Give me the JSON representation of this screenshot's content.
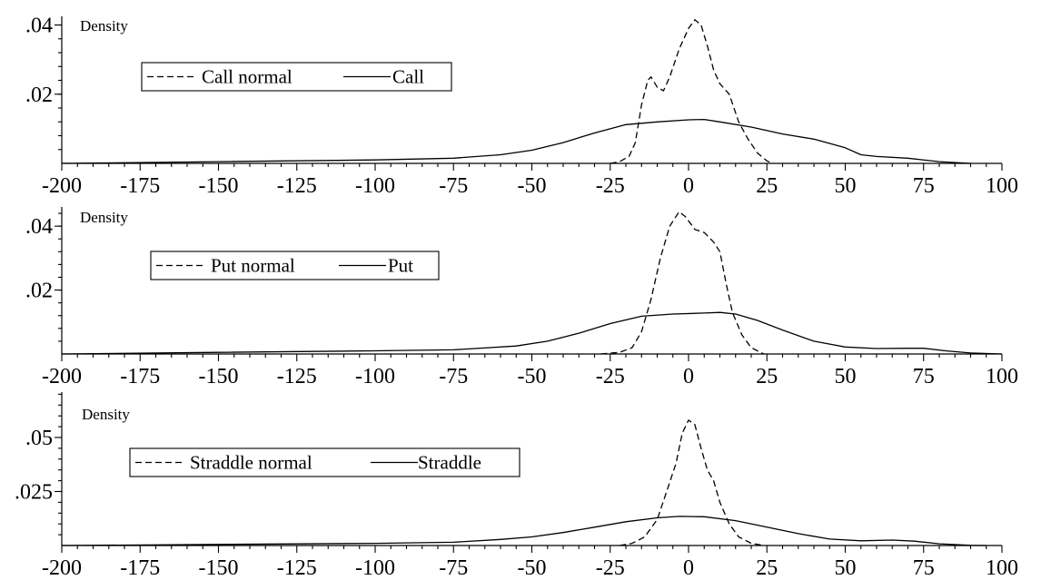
{
  "chart_data": [
    {
      "type": "line",
      "ylabel": "Density",
      "xlim": [
        -200,
        100
      ],
      "x_ticks": [
        "-200",
        "-175",
        "-150",
        "-125",
        "-100",
        "-75",
        "-50",
        "-25",
        "0",
        "25",
        "50",
        "75",
        "100"
      ],
      "y_ticks": [
        {
          "value": 0.02,
          "label": ".02"
        },
        {
          "value": 0.04,
          "label": ".04"
        }
      ],
      "ylim": [
        0,
        0.0425
      ],
      "grid": false,
      "legend_position": "top-left",
      "series": [
        {
          "name": "Call normal",
          "style": "dashed",
          "points": [
            [
              -25,
              0
            ],
            [
              -22,
              0.0005
            ],
            [
              -19,
              0.002
            ],
            [
              -17,
              0.006
            ],
            [
              -15,
              0.017
            ],
            [
              -13,
              0.024
            ],
            [
              -12,
              0.025
            ],
            [
              -10,
              0.022
            ],
            [
              -8,
              0.021
            ],
            [
              -6,
              0.025
            ],
            [
              -3,
              0.033
            ],
            [
              0,
              0.039
            ],
            [
              2,
              0.0415
            ],
            [
              4,
              0.04
            ],
            [
              6,
              0.034
            ],
            [
              8,
              0.027
            ],
            [
              10,
              0.023
            ],
            [
              13,
              0.02
            ],
            [
              16,
              0.012
            ],
            [
              19,
              0.007
            ],
            [
              22,
              0.003
            ],
            [
              25,
              0.0007
            ],
            [
              27,
              0
            ]
          ]
        },
        {
          "name": "Call",
          "style": "solid",
          "points": [
            [
              -200,
              0
            ],
            [
              -150,
              0.0005
            ],
            [
              -100,
              0.001
            ],
            [
              -75,
              0.0015
            ],
            [
              -60,
              0.0025
            ],
            [
              -50,
              0.0038
            ],
            [
              -40,
              0.006
            ],
            [
              -30,
              0.0088
            ],
            [
              -20,
              0.0112
            ],
            [
              -10,
              0.012
            ],
            [
              0,
              0.0126
            ],
            [
              5,
              0.0127
            ],
            [
              10,
              0.012
            ],
            [
              20,
              0.0105
            ],
            [
              30,
              0.0085
            ],
            [
              40,
              0.007
            ],
            [
              50,
              0.0045
            ],
            [
              55,
              0.0025
            ],
            [
              60,
              0.002
            ],
            [
              70,
              0.0015
            ],
            [
              80,
              0.0005
            ],
            [
              90,
              0
            ]
          ]
        }
      ]
    },
    {
      "type": "line",
      "ylabel": "Density",
      "xlim": [
        -200,
        100
      ],
      "x_ticks": [
        "-200",
        "-175",
        "-150",
        "-125",
        "-100",
        "-75",
        "-50",
        "-25",
        "0",
        "25",
        "50",
        "75",
        "100"
      ],
      "y_ticks": [
        {
          "value": 0.02,
          "label": ".02"
        },
        {
          "value": 0.04,
          "label": ".04"
        }
      ],
      "ylim": [
        0,
        0.046
      ],
      "grid": false,
      "legend_position": "top-left",
      "series": [
        {
          "name": "Put normal",
          "style": "dashed",
          "points": [
            [
              -28,
              0
            ],
            [
              -22,
              0.0005
            ],
            [
              -18,
              0.002
            ],
            [
              -15,
              0.007
            ],
            [
              -12,
              0.017
            ],
            [
              -9,
              0.03
            ],
            [
              -6,
              0.04
            ],
            [
              -3,
              0.0445
            ],
            [
              -1,
              0.043
            ],
            [
              2,
              0.039
            ],
            [
              5,
              0.038
            ],
            [
              8,
              0.035
            ],
            [
              10,
              0.032
            ],
            [
              12,
              0.022
            ],
            [
              14,
              0.013
            ],
            [
              17,
              0.006
            ],
            [
              20,
              0.002
            ],
            [
              24,
              0
            ]
          ]
        },
        {
          "name": "Put",
          "style": "solid",
          "points": [
            [
              -200,
              0
            ],
            [
              -150,
              0.0005
            ],
            [
              -100,
              0.001
            ],
            [
              -75,
              0.0013
            ],
            [
              -55,
              0.0025
            ],
            [
              -45,
              0.004
            ],
            [
              -35,
              0.0065
            ],
            [
              -25,
              0.0095
            ],
            [
              -15,
              0.0118
            ],
            [
              -5,
              0.0125
            ],
            [
              5,
              0.0128
            ],
            [
              10,
              0.013
            ],
            [
              15,
              0.0125
            ],
            [
              22,
              0.0105
            ],
            [
              30,
              0.0075
            ],
            [
              40,
              0.004
            ],
            [
              50,
              0.0022
            ],
            [
              60,
              0.0017
            ],
            [
              70,
              0.0018
            ],
            [
              75,
              0.0018
            ],
            [
              82,
              0.001
            ],
            [
              90,
              0.0003
            ],
            [
              100,
              0
            ]
          ]
        }
      ]
    },
    {
      "type": "line",
      "ylabel": "Density",
      "xlim": [
        -200,
        100
      ],
      "x_ticks": [
        "-200",
        "-175",
        "-150",
        "-125",
        "-100",
        "-75",
        "-50",
        "-25",
        "0",
        "25",
        "50",
        "75",
        "100"
      ],
      "y_ticks": [
        {
          "value": 0.025,
          "label": ".025"
        },
        {
          "value": 0.05,
          "label": ".05"
        }
      ],
      "ylim": [
        0,
        0.071
      ],
      "grid": false,
      "legend_position": "top-left",
      "series": [
        {
          "name": "Straddle normal",
          "style": "dashed",
          "points": [
            [
              -22,
              0
            ],
            [
              -18,
              0.001
            ],
            [
              -14,
              0.004
            ],
            [
              -10,
              0.012
            ],
            [
              -7,
              0.025
            ],
            [
              -4,
              0.038
            ],
            [
              -2,
              0.052
            ],
            [
              0,
              0.058
            ],
            [
              2,
              0.056
            ],
            [
              4,
              0.045
            ],
            [
              6,
              0.035
            ],
            [
              8,
              0.03
            ],
            [
              10,
              0.02
            ],
            [
              13,
              0.01
            ],
            [
              16,
              0.004
            ],
            [
              20,
              0.001
            ],
            [
              24,
              0
            ]
          ]
        },
        {
          "name": "Straddle",
          "style": "solid",
          "points": [
            [
              -200,
              0
            ],
            [
              -150,
              0.0005
            ],
            [
              -100,
              0.001
            ],
            [
              -75,
              0.0015
            ],
            [
              -60,
              0.0028
            ],
            [
              -50,
              0.004
            ],
            [
              -40,
              0.006
            ],
            [
              -30,
              0.0085
            ],
            [
              -20,
              0.011
            ],
            [
              -10,
              0.0128
            ],
            [
              -3,
              0.0135
            ],
            [
              5,
              0.0133
            ],
            [
              15,
              0.0115
            ],
            [
              25,
              0.0085
            ],
            [
              35,
              0.0055
            ],
            [
              45,
              0.003
            ],
            [
              55,
              0.0022
            ],
            [
              65,
              0.0025
            ],
            [
              72,
              0.002
            ],
            [
              80,
              0.0008
            ],
            [
              90,
              0.0001
            ],
            [
              95,
              0
            ]
          ]
        }
      ]
    }
  ]
}
